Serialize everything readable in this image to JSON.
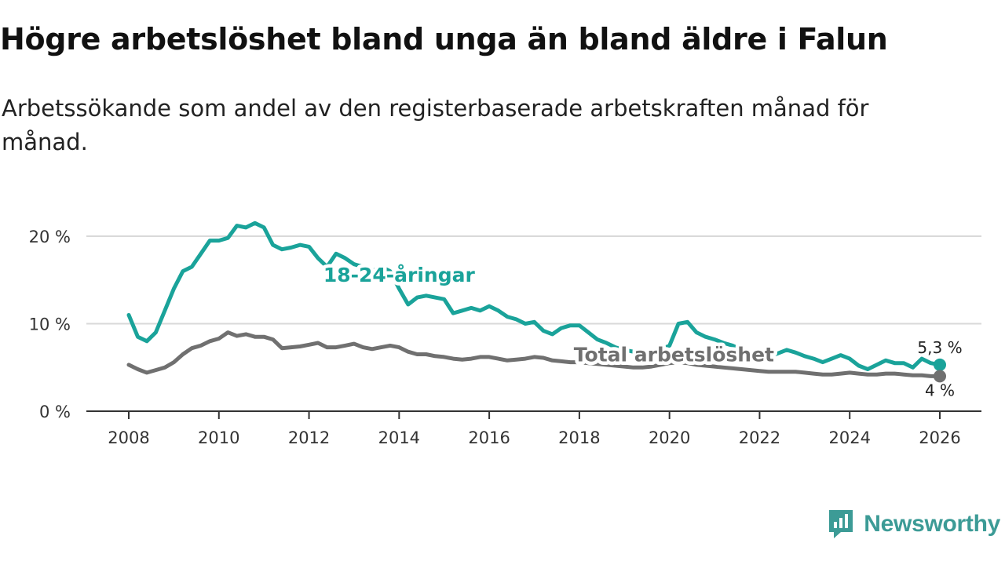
{
  "title": "Högre arbetslöshet bland unga än bland äldre i Falun",
  "subtitle": "Arbetssökande som andel av den registerbaserade arbetskraften månad för månad.",
  "brand": {
    "name": "Newsworthy",
    "icon": "newsworthy-logo-icon",
    "color": "#3c9b96"
  },
  "chart_data": {
    "type": "line",
    "title": "Högre arbetslöshet bland unga än bland äldre i Falun",
    "subtitle": "Arbetssökande som andel av den registerbaserade arbetskraften månad för månad.",
    "xlabel": "",
    "ylabel": "",
    "xlim": [
      2007.5,
      2027.0
    ],
    "ylim": [
      0,
      22
    ],
    "grid": true,
    "x_ticks": [
      2008,
      2010,
      2012,
      2014,
      2016,
      2018,
      2020,
      2022,
      2024,
      2026
    ],
    "x_tick_labels": [
      "2008",
      "2010",
      "2012",
      "2014",
      "2016",
      "2018",
      "2020",
      "2022",
      "2024",
      "2026"
    ],
    "y_ticks": [
      0,
      10,
      20
    ],
    "y_tick_labels": [
      "0 %",
      "10 %",
      "20 %"
    ],
    "series": [
      {
        "name": "18-24-åringar",
        "label": "18-24-åringar",
        "color": "#1aa39a",
        "end_label": "5,3 %",
        "x": [
          2008.0,
          2008.2,
          2008.4,
          2008.6,
          2008.8,
          2009.0,
          2009.2,
          2009.4,
          2009.6,
          2009.8,
          2010.0,
          2010.2,
          2010.4,
          2010.6,
          2010.8,
          2011.0,
          2011.2,
          2011.4,
          2011.6,
          2011.8,
          2012.0,
          2012.2,
          2012.4,
          2012.6,
          2012.8,
          2013.0,
          2013.2,
          2013.4,
          2013.6,
          2013.8,
          2014.0,
          2014.2,
          2014.4,
          2014.6,
          2014.8,
          2015.0,
          2015.2,
          2015.4,
          2015.6,
          2015.8,
          2016.0,
          2016.2,
          2016.4,
          2016.6,
          2016.8,
          2017.0,
          2017.2,
          2017.4,
          2017.6,
          2017.8,
          2018.0,
          2018.2,
          2018.4,
          2018.6,
          2018.8,
          2019.0,
          2019.2,
          2019.4,
          2019.6,
          2019.8,
          2020.0,
          2020.2,
          2020.4,
          2020.6,
          2020.8,
          2021.0,
          2021.2,
          2021.4,
          2021.6,
          2021.8,
          2022.0,
          2022.2,
          2022.4,
          2022.6,
          2022.8,
          2023.0,
          2023.2,
          2023.4,
          2023.6,
          2023.8,
          2024.0,
          2024.2,
          2024.4,
          2024.6,
          2024.8,
          2025.0,
          2025.2,
          2025.4,
          2025.6,
          2025.8,
          2026.0
        ],
        "y": [
          11.0,
          8.5,
          8.0,
          9.0,
          11.5,
          14.0,
          16.0,
          16.5,
          18.0,
          19.5,
          19.5,
          19.8,
          21.2,
          21.0,
          21.5,
          21.0,
          19.0,
          18.5,
          18.7,
          19.0,
          18.8,
          17.5,
          16.5,
          18.0,
          17.5,
          16.8,
          16.5,
          16.0,
          16.5,
          16.0,
          14.0,
          12.2,
          13.0,
          13.2,
          13.0,
          12.8,
          11.2,
          11.5,
          11.8,
          11.5,
          12.0,
          11.5,
          10.8,
          10.5,
          10.0,
          10.2,
          9.2,
          8.8,
          9.5,
          9.8,
          9.8,
          9.0,
          8.2,
          7.8,
          7.3,
          7.0,
          6.8,
          6.6,
          6.5,
          7.0,
          7.5,
          10.0,
          10.2,
          9.0,
          8.5,
          8.2,
          7.8,
          7.5,
          7.0,
          6.8,
          6.5,
          6.2,
          6.6,
          7.0,
          6.7,
          6.3,
          6.0,
          5.6,
          6.0,
          6.4,
          6.0,
          5.2,
          4.8,
          5.3,
          5.8,
          5.5,
          5.5,
          5.0,
          6.0,
          5.5,
          5.3
        ]
      },
      {
        "name": "Total arbetslöshet",
        "label": "Total arbetslöshet",
        "color": "#707070",
        "end_label": "4 %",
        "x": [
          2008.0,
          2008.2,
          2008.4,
          2008.6,
          2008.8,
          2009.0,
          2009.2,
          2009.4,
          2009.6,
          2009.8,
          2010.0,
          2010.2,
          2010.4,
          2010.6,
          2010.8,
          2011.0,
          2011.2,
          2011.4,
          2011.6,
          2011.8,
          2012.0,
          2012.2,
          2012.4,
          2012.6,
          2012.8,
          2013.0,
          2013.2,
          2013.4,
          2013.6,
          2013.8,
          2014.0,
          2014.2,
          2014.4,
          2014.6,
          2014.8,
          2015.0,
          2015.2,
          2015.4,
          2015.6,
          2015.8,
          2016.0,
          2016.2,
          2016.4,
          2016.6,
          2016.8,
          2017.0,
          2017.2,
          2017.4,
          2017.6,
          2017.8,
          2018.0,
          2018.2,
          2018.4,
          2018.6,
          2018.8,
          2019.0,
          2019.2,
          2019.4,
          2019.6,
          2019.8,
          2020.0,
          2020.2,
          2020.4,
          2020.6,
          2020.8,
          2021.0,
          2021.2,
          2021.4,
          2021.6,
          2021.8,
          2022.0,
          2022.2,
          2022.4,
          2022.6,
          2022.8,
          2023.0,
          2023.2,
          2023.4,
          2023.6,
          2023.8,
          2024.0,
          2024.2,
          2024.4,
          2024.6,
          2024.8,
          2025.0,
          2025.2,
          2025.4,
          2025.6,
          2025.8,
          2026.0
        ],
        "y": [
          5.3,
          4.8,
          4.4,
          4.7,
          5.0,
          5.6,
          6.5,
          7.2,
          7.5,
          8.0,
          8.3,
          9.0,
          8.6,
          8.8,
          8.5,
          8.5,
          8.2,
          7.2,
          7.3,
          7.4,
          7.6,
          7.8,
          7.3,
          7.3,
          7.5,
          7.7,
          7.3,
          7.1,
          7.3,
          7.5,
          7.3,
          6.8,
          6.5,
          6.5,
          6.3,
          6.2,
          6.0,
          5.9,
          6.0,
          6.2,
          6.2,
          6.0,
          5.8,
          5.9,
          6.0,
          6.2,
          6.1,
          5.8,
          5.7,
          5.6,
          5.6,
          5.5,
          5.4,
          5.3,
          5.2,
          5.1,
          5.0,
          5.0,
          5.1,
          5.3,
          5.5,
          5.6,
          5.5,
          5.3,
          5.2,
          5.1,
          5.0,
          4.9,
          4.8,
          4.7,
          4.6,
          4.5,
          4.5,
          4.5,
          4.5,
          4.4,
          4.3,
          4.2,
          4.2,
          4.3,
          4.4,
          4.3,
          4.2,
          4.2,
          4.3,
          4.3,
          4.2,
          4.1,
          4.1,
          4.0,
          4.0
        ]
      }
    ],
    "annotations": [
      {
        "text": "18-24-åringar",
        "series": "18-24-åringar",
        "x": 2014.0,
        "y": 14.8
      },
      {
        "text": "Total arbetslöshet",
        "series": "Total arbetslöshet",
        "x": 2020.1,
        "y": 5.7
      }
    ]
  }
}
